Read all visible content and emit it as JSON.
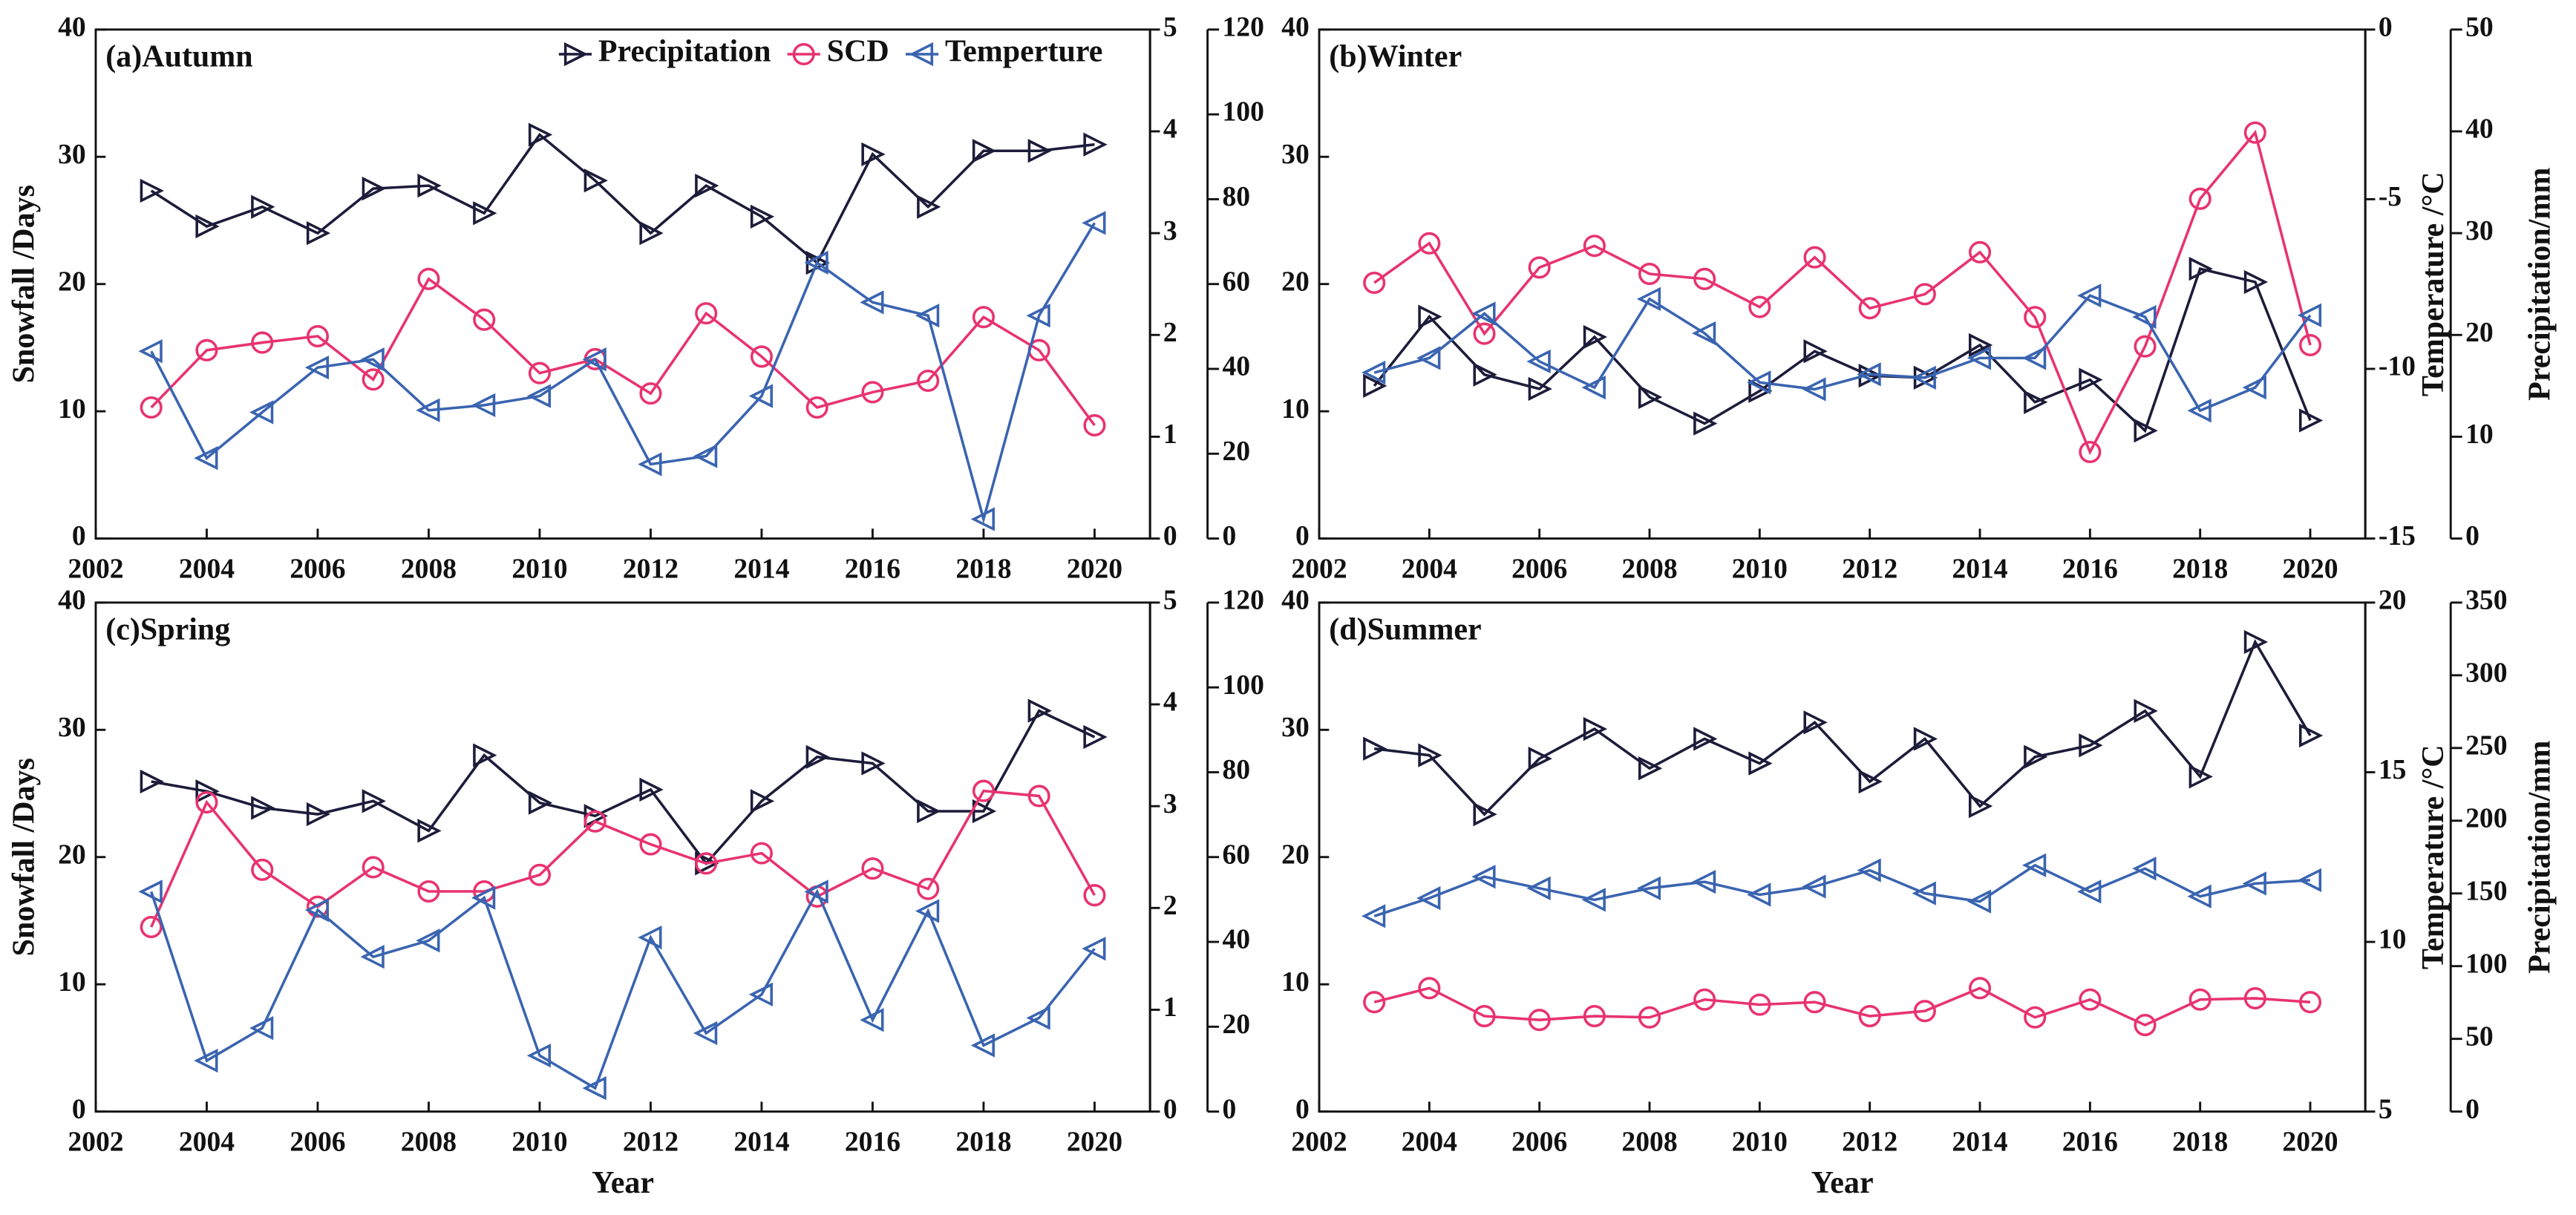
{
  "chart_data": [
    {
      "type": "line",
      "title": "(a)Autumn",
      "ylabel": "Snowfall /Days",
      "x": [
        2003,
        2004,
        2005,
        2006,
        2007,
        2008,
        2009,
        2010,
        2011,
        2012,
        2013,
        2014,
        2015,
        2016,
        2017,
        2018,
        2019,
        2020
      ],
      "xlim": [
        2002,
        2021
      ],
      "xticks": [
        2002,
        2004,
        2006,
        2008,
        2010,
        2012,
        2014,
        2016,
        2018,
        2020
      ],
      "ylim": [
        0,
        40
      ],
      "yticks": [
        0,
        10,
        20,
        30,
        40
      ],
      "y2lim": [
        0,
        5
      ],
      "y2ticks": [
        0,
        1,
        2,
        3,
        4,
        5
      ],
      "y3lim": [
        0,
        120
      ],
      "y3ticks": [
        0,
        20,
        40,
        60,
        80,
        100,
        120
      ],
      "legend": "upper right",
      "series": [
        {
          "name": "Precipitation",
          "color": "#1c1c3a",
          "marker": "triangle-right",
          "axis": "y3",
          "values": [
            82,
            73.6,
            78.2,
            72,
            82.5,
            83.2,
            76.7,
            95.2,
            84.4,
            72,
            83.2,
            75.9,
            65,
            90.6,
            78.2,
            91.4,
            91.4,
            92.9
          ]
        },
        {
          "name": "SCD",
          "color": "#e8336f",
          "marker": "circle",
          "axis": "y",
          "values": [
            10.3,
            14.8,
            15.4,
            15.9,
            12.5,
            20.4,
            17.2,
            13.0,
            14.1,
            11.4,
            17.7,
            14.3,
            10.3,
            11.5,
            12.4,
            17.4,
            14.8,
            8.9
          ]
        },
        {
          "name": "Temperture",
          "color": "#3a64b0",
          "marker": "triangle-left",
          "axis": "y2",
          "values": [
            1.84,
            0.79,
            1.24,
            1.68,
            1.76,
            1.26,
            1.31,
            1.4,
            1.76,
            0.73,
            0.81,
            1.4,
            2.71,
            2.32,
            2.19,
            0.19,
            2.19,
            3.1
          ]
        }
      ]
    },
    {
      "type": "line",
      "title": "(b)Winter",
      "y2label": "Temperature /°C",
      "y3label": "Precipitation/mm",
      "x": [
        2003,
        2004,
        2005,
        2006,
        2007,
        2008,
        2009,
        2010,
        2011,
        2012,
        2013,
        2014,
        2015,
        2016,
        2017,
        2018,
        2019,
        2020
      ],
      "xlim": [
        2002,
        2021
      ],
      "xticks": [
        2002,
        2004,
        2006,
        2008,
        2010,
        2012,
        2014,
        2016,
        2018,
        2020
      ],
      "ylim": [
        0,
        40
      ],
      "yticks": [
        0,
        10,
        20,
        30,
        40
      ],
      "y2lim": [
        -15,
        0
      ],
      "y2ticks": [
        -15,
        -10,
        -5,
        0
      ],
      "y3lim": [
        0,
        50
      ],
      "y3ticks": [
        0,
        10,
        20,
        30,
        40,
        50
      ],
      "series": [
        {
          "color": "#1c1c3a",
          "marker": "triangle-right",
          "axis": "y3",
          "values": [
            15.0,
            21.8,
            16.1,
            14.7,
            19.8,
            13.9,
            11.3,
            14.5,
            18.4,
            16.0,
            15.8,
            19.0,
            13.4,
            15.6,
            10.6,
            26.5,
            25.2,
            11.6
          ]
        },
        {
          "color": "#e8336f",
          "marker": "circle",
          "axis": "y",
          "values": [
            20.1,
            23.2,
            16.1,
            21.3,
            23.0,
            20.8,
            20.4,
            18.2,
            22.1,
            18.1,
            19.2,
            22.5,
            17.4,
            6.8,
            15.1,
            26.7,
            31.9,
            15.2
          ]
        },
        {
          "color": "#3a64b0",
          "marker": "triangle-left",
          "axis": "y2",
          "values": [
            -10.11,
            -9.68,
            -8.37,
            -9.78,
            -10.55,
            -7.94,
            -8.95,
            -10.4,
            -10.6,
            -10.16,
            -10.26,
            -9.68,
            -9.68,
            -7.84,
            -8.47,
            -11.23,
            -10.55,
            -8.42
          ]
        }
      ]
    },
    {
      "type": "line",
      "title": "(c)Spring",
      "ylabel": "Snowfall /Days",
      "xlabel": "Year",
      "x": [
        2003,
        2004,
        2005,
        2006,
        2007,
        2008,
        2009,
        2010,
        2011,
        2012,
        2013,
        2014,
        2015,
        2016,
        2017,
        2018,
        2019,
        2020
      ],
      "xlim": [
        2002,
        2021
      ],
      "xticks": [
        2002,
        2004,
        2006,
        2008,
        2010,
        2012,
        2014,
        2016,
        2018,
        2020
      ],
      "ylim": [
        0,
        40
      ],
      "yticks": [
        0,
        10,
        20,
        30,
        40
      ],
      "y2lim": [
        0,
        5
      ],
      "y2ticks": [
        0,
        1,
        2,
        3,
        4,
        5
      ],
      "y3lim": [
        0,
        120
      ],
      "y3ticks": [
        0,
        20,
        40,
        60,
        80,
        100,
        120
      ],
      "series": [
        {
          "color": "#1c1c3a",
          "marker": "triangle-right",
          "axis": "y3",
          "values": [
            77.8,
            75.5,
            71.6,
            70.1,
            73.2,
            66.2,
            84.0,
            72.8,
            69.7,
            75.9,
            58.5,
            73.2,
            83.6,
            82.1,
            70.8,
            70.8,
            94.5,
            88.3
          ]
        },
        {
          "color": "#e8336f",
          "marker": "circle",
          "axis": "y",
          "values": [
            14.5,
            24.3,
            19.0,
            16.1,
            19.2,
            17.3,
            17.3,
            18.6,
            22.8,
            21.0,
            19.5,
            20.3,
            16.9,
            19.1,
            17.5,
            25.2,
            24.8,
            17.0
          ]
        },
        {
          "color": "#3a64b0",
          "marker": "triangle-left",
          "axis": "y2",
          "values": [
            2.16,
            0.5,
            0.82,
            1.98,
            1.52,
            1.68,
            2.1,
            0.55,
            0.23,
            1.71,
            0.77,
            1.15,
            2.16,
            0.9,
            1.97,
            0.65,
            0.92,
            1.6
          ]
        }
      ]
    },
    {
      "type": "line",
      "title": "(d)Summer",
      "xlabel": "Year",
      "y2label": "Temperature /°C",
      "y3label": "Precipitation/mm",
      "x": [
        2003,
        2004,
        2005,
        2006,
        2007,
        2008,
        2009,
        2010,
        2011,
        2012,
        2013,
        2014,
        2015,
        2016,
        2017,
        2018,
        2019,
        2020
      ],
      "xlim": [
        2002,
        2021
      ],
      "xticks": [
        2002,
        2004,
        2006,
        2008,
        2010,
        2012,
        2014,
        2016,
        2018,
        2020
      ],
      "ylim": [
        0,
        40
      ],
      "yticks": [
        0,
        10,
        20,
        30,
        40
      ],
      "y2lim": [
        5,
        20
      ],
      "y2ticks": [
        5,
        10,
        15,
        20
      ],
      "y3lim": [
        0,
        350
      ],
      "y3ticks": [
        0,
        50,
        100,
        150,
        200,
        250,
        300,
        350
      ],
      "series": [
        {
          "color": "#1c1c3a",
          "marker": "triangle-right",
          "axis": "y3",
          "values": [
            249.5,
            245.0,
            204.4,
            242.7,
            263.1,
            236.0,
            256.3,
            239.4,
            267.6,
            226.9,
            256.3,
            210.0,
            243.9,
            251.8,
            275.5,
            230.3,
            322.9,
            258.6
          ]
        },
        {
          "color": "#e8336f",
          "marker": "circle",
          "axis": "y",
          "values": [
            8.6,
            9.7,
            7.5,
            7.2,
            7.5,
            7.4,
            8.8,
            8.4,
            8.6,
            7.5,
            7.9,
            9.7,
            7.4,
            8.8,
            6.8,
            8.8,
            8.9,
            8.6
          ]
        },
        {
          "color": "#3a64b0",
          "marker": "triangle-left",
          "axis": "y2",
          "values": [
            10.76,
            11.29,
            11.92,
            11.58,
            11.24,
            11.58,
            11.77,
            11.39,
            11.63,
            12.11,
            11.43,
            11.19,
            12.26,
            11.48,
            12.16,
            11.34,
            11.72,
            11.82
          ]
        }
      ]
    }
  ]
}
